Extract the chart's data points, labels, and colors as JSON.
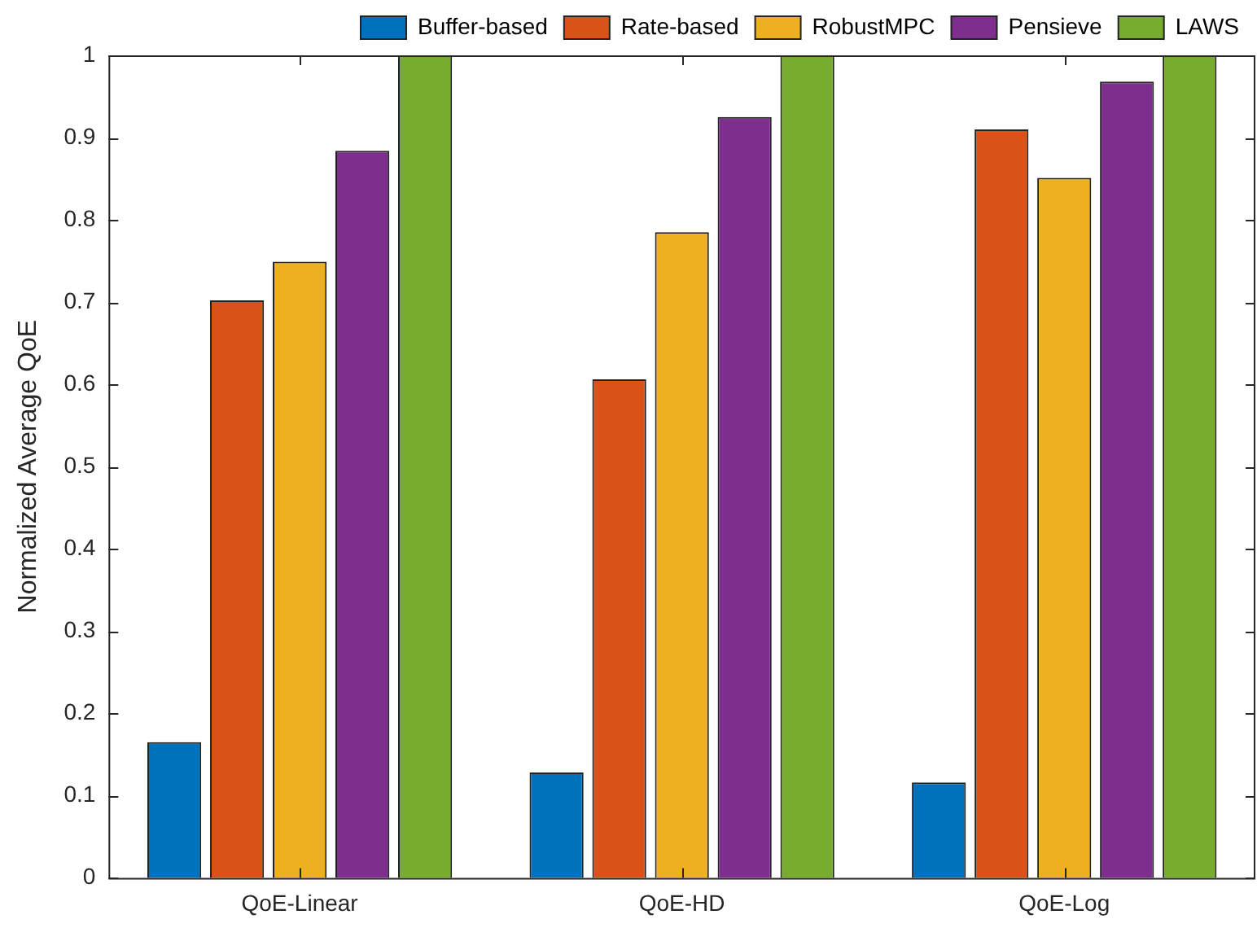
{
  "chart_data": {
    "type": "bar",
    "ylabel": "Normalized Average QoE",
    "categories": [
      "QoE-Linear",
      "QoE-HD",
      "QoE-Log"
    ],
    "series": [
      {
        "name": "Buffer-based",
        "color": "#0072bd",
        "values": [
          0.165,
          0.128,
          0.116
        ]
      },
      {
        "name": "Rate-based",
        "color": "#d95319",
        "values": [
          0.702,
          0.606,
          0.91
        ]
      },
      {
        "name": "RobustMPC",
        "color": "#edb120",
        "values": [
          0.749,
          0.785,
          0.851
        ]
      },
      {
        "name": "Pensieve",
        "color": "#7e2f8e",
        "values": [
          0.884,
          0.925,
          0.968
        ]
      },
      {
        "name": "LAWS",
        "color": "#77ac30",
        "values": [
          1,
          1,
          1
        ]
      }
    ],
    "ylim": [
      0,
      1
    ],
    "yticks": [
      0,
      0.1,
      0.2,
      0.3,
      0.4,
      0.5,
      0.6,
      0.7,
      0.8,
      0.9,
      1
    ],
    "legend": "top"
  }
}
